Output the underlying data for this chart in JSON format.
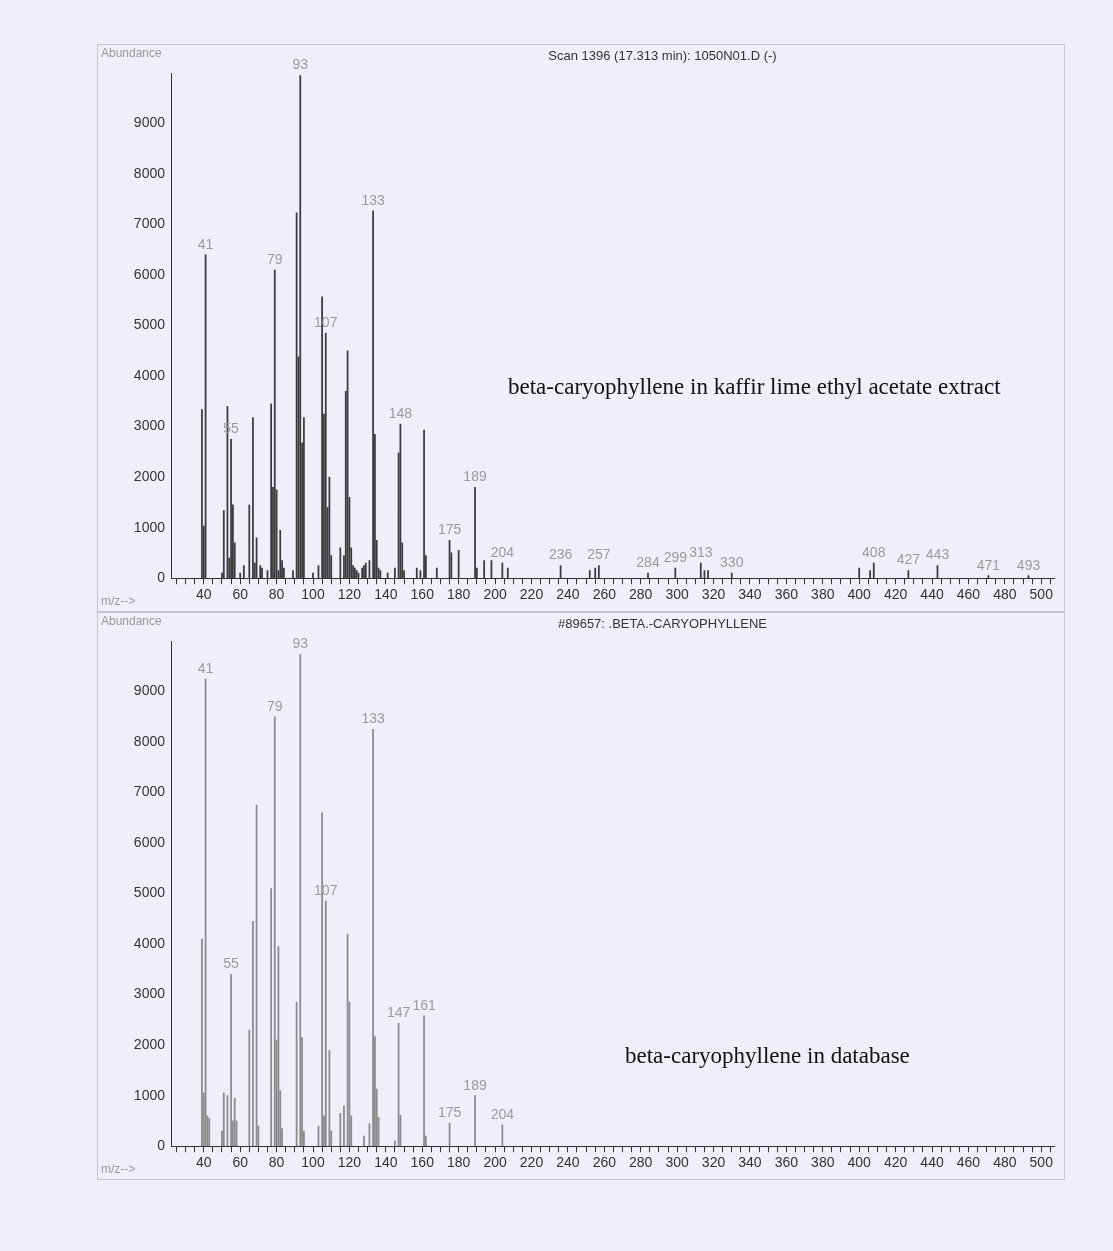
{
  "chart_data": [
    {
      "type": "bar",
      "title": "Scan 1396 (17.313 min): 1050N01.D (-)",
      "xlabel": "m/z-->",
      "ylabel": "Abundance",
      "color": "#3a3a3a",
      "grid": false,
      "x": [
        39,
        40,
        41,
        50,
        51,
        53,
        54,
        55,
        56,
        57,
        60,
        62,
        65,
        67,
        68,
        69,
        71,
        72,
        75,
        77,
        78,
        79,
        80,
        81,
        82,
        83,
        84,
        89,
        91,
        92,
        93,
        94,
        95,
        100,
        103,
        105,
        106,
        107,
        108,
        109,
        110,
        115,
        117,
        118,
        119,
        120,
        121,
        122,
        123,
        124,
        125,
        127,
        128,
        129,
        131,
        133,
        134,
        135,
        136,
        137,
        141,
        145,
        147,
        148,
        149,
        150,
        157,
        159,
        161,
        162,
        168,
        175,
        176,
        180,
        189,
        190,
        194,
        198,
        204,
        207,
        236,
        252,
        255,
        257,
        284,
        299,
        313,
        315,
        317,
        330,
        400,
        406,
        408,
        427,
        443,
        471,
        493
      ],
      "values": [
        3340,
        1030,
        6400,
        100,
        1340,
        3400,
        400,
        2750,
        1450,
        700,
        100,
        250,
        1450,
        3180,
        300,
        800,
        250,
        200,
        150,
        3450,
        1800,
        6100,
        1750,
        150,
        950,
        350,
        200,
        150,
        7230,
        4380,
        9950,
        2680,
        3180,
        100,
        250,
        5570,
        3250,
        4850,
        1400,
        2000,
        450,
        600,
        450,
        3700,
        4500,
        1600,
        600,
        250,
        200,
        150,
        100,
        200,
        250,
        300,
        350,
        7270,
        2850,
        750,
        200,
        150,
        100,
        200,
        2480,
        3050,
        700,
        150,
        200,
        150,
        2930,
        450,
        200,
        750,
        500,
        550,
        1800,
        200,
        350,
        350,
        300,
        200,
        250,
        150,
        200,
        250,
        100,
        200,
        300,
        150,
        150,
        100,
        200,
        150,
        300,
        150,
        250,
        50,
        50
      ],
      "xlim": [
        22,
        507
      ],
      "xticks": [
        {
          "value": 25,
          "label": null
        },
        {
          "value": 30,
          "label": null
        },
        {
          "value": 35,
          "label": null
        },
        40,
        {
          "value": 45,
          "label": null
        },
        {
          "value": 50,
          "label": null
        },
        {
          "value": 55,
          "label": null
        },
        60,
        {
          "value": 65,
          "label": null
        },
        {
          "value": 70,
          "label": null
        },
        {
          "value": 75,
          "label": null
        },
        80,
        {
          "value": 85,
          "label": null
        },
        {
          "value": 90,
          "label": null
        },
        {
          "value": 95,
          "label": null
        },
        100,
        {
          "value": 105,
          "label": null
        },
        {
          "value": 110,
          "label": null
        },
        {
          "value": 115,
          "label": null
        },
        120,
        {
          "value": 125,
          "label": null
        },
        {
          "value": 130,
          "label": null
        },
        {
          "value": 135,
          "label": null
        },
        140,
        {
          "value": 145,
          "label": null
        },
        {
          "value": 150,
          "label": null
        },
        {
          "value": 155,
          "label": null
        },
        160,
        {
          "value": 165,
          "label": null
        },
        {
          "value": 170,
          "label": null
        },
        {
          "value": 175,
          "label": null
        },
        180,
        {
          "value": 185,
          "label": null
        },
        {
          "value": 190,
          "label": null
        },
        {
          "value": 195,
          "label": null
        },
        200,
        {
          "value": 205,
          "label": null
        },
        {
          "value": 210,
          "label": null
        },
        {
          "value": 215,
          "label": null
        },
        220,
        {
          "value": 225,
          "label": null
        },
        {
          "value": 230,
          "label": null
        },
        {
          "value": 235,
          "label": null
        },
        240,
        {
          "value": 245,
          "label": null
        },
        {
          "value": 250,
          "label": null
        },
        {
          "value": 255,
          "label": null
        },
        260,
        {
          "value": 265,
          "label": null
        },
        {
          "value": 270,
          "label": null
        },
        {
          "value": 275,
          "label": null
        },
        280,
        {
          "value": 285,
          "label": null
        },
        {
          "value": 290,
          "label": null
        },
        {
          "value": 295,
          "label": null
        },
        300,
        {
          "value": 305,
          "label": null
        },
        {
          "value": 310,
          "label": null
        },
        {
          "value": 315,
          "label": null
        },
        320,
        {
          "value": 325,
          "label": null
        },
        {
          "value": 330,
          "label": null
        },
        {
          "value": 335,
          "label": null
        },
        340,
        {
          "value": 345,
          "label": null
        },
        {
          "value": 350,
          "label": null
        },
        {
          "value": 355,
          "label": null
        },
        360,
        {
          "value": 365,
          "label": null
        },
        {
          "value": 370,
          "label": null
        },
        {
          "value": 375,
          "label": null
        },
        380,
        {
          "value": 385,
          "label": null
        },
        {
          "value": 390,
          "label": null
        },
        {
          "value": 395,
          "label": null
        },
        400,
        {
          "value": 405,
          "label": null
        },
        {
          "value": 410,
          "label": null
        },
        {
          "value": 415,
          "label": null
        },
        420,
        {
          "value": 425,
          "label": null
        },
        {
          "value": 430,
          "label": null
        },
        {
          "value": 435,
          "label": null
        },
        440,
        {
          "value": 445,
          "label": null
        },
        {
          "value": 450,
          "label": null
        },
        {
          "value": 455,
          "label": null
        },
        460,
        {
          "value": 465,
          "label": null
        },
        {
          "value": 470,
          "label": null
        },
        {
          "value": 475,
          "label": null
        },
        480,
        {
          "value": 485,
          "label": null
        },
        {
          "value": 490,
          "label": null
        },
        {
          "value": 495,
          "label": null
        },
        500,
        {
          "value": 505,
          "label": null
        }
      ],
      "ylim": [
        0,
        10000
      ],
      "yticks": [
        0,
        1000,
        2000,
        3000,
        4000,
        5000,
        6000,
        7000,
        8000,
        9000
      ],
      "annotations": [
        {
          "text": "41",
          "x": 41,
          "y": 6400
        },
        {
          "text": "55",
          "x": 55,
          "y": 2750
        },
        {
          "text": "79",
          "x": 79,
          "y": 6100
        },
        {
          "text": "93",
          "x": 93,
          "y": 9950
        },
        {
          "text": "107",
          "x": 107,
          "y": 4850
        },
        {
          "text": "133",
          "x": 133,
          "y": 7270
        },
        {
          "text": "148",
          "x": 148,
          "y": 3050
        },
        {
          "text": "175",
          "x": 175,
          "y": 750
        },
        {
          "text": "189",
          "x": 189,
          "y": 1800
        },
        {
          "text": "204",
          "x": 204,
          "y": 300
        },
        {
          "text": "236",
          "x": 236,
          "y": 250
        },
        {
          "text": "257",
          "x": 257,
          "y": 250
        },
        {
          "text": "284",
          "x": 284,
          "y": 100
        },
        {
          "text": "299",
          "x": 299,
          "y": 200
        },
        {
          "text": "313",
          "x": 313,
          "y": 300
        },
        {
          "text": "330",
          "x": 330,
          "y": 100
        },
        {
          "text": "408",
          "x": 408,
          "y": 300
        },
        {
          "text": "427",
          "x": 427,
          "y": 150
        },
        {
          "text": "443",
          "x": 443,
          "y": 250
        },
        {
          "text": "471",
          "x": 471,
          "y": 50
        },
        {
          "text": "493",
          "x": 493,
          "y": 50
        },
        "beta-caryophyllene in kaffir lime ethyl acetate extract"
      ]
    },
    {
      "type": "bar",
      "title": "#89657: .BETA.-CARYOPHYLLENE",
      "xlabel": "m/z-->",
      "ylabel": "Abundance",
      "color": "#8a8a8a",
      "grid": false,
      "x": [
        39,
        40,
        41,
        42,
        43,
        50,
        51,
        53,
        55,
        56,
        57,
        58,
        65,
        67,
        69,
        70,
        77,
        79,
        80,
        81,
        82,
        83,
        91,
        93,
        94,
        95,
        103,
        105,
        106,
        107,
        109,
        110,
        115,
        117,
        119,
        120,
        121,
        128,
        131,
        133,
        134,
        135,
        136,
        145,
        147,
        148,
        161,
        162,
        175,
        189,
        204
      ],
      "values": [
        4100,
        1050,
        9250,
        600,
        550,
        300,
        1050,
        1000,
        3400,
        500,
        950,
        500,
        2300,
        4450,
        6750,
        400,
        5100,
        8500,
        2100,
        3950,
        1100,
        350,
        2850,
        9730,
        2150,
        300,
        400,
        6600,
        600,
        4850,
        1900,
        300,
        650,
        800,
        4200,
        2850,
        600,
        200,
        450,
        8250,
        2170,
        1130,
        570,
        100,
        2430,
        610,
        2580,
        200,
        460,
        1000,
        420
      ],
      "xlim": [
        22,
        507
      ],
      "xticks": [
        {
          "value": 25,
          "label": null
        },
        {
          "value": 30,
          "label": null
        },
        {
          "value": 35,
          "label": null
        },
        40,
        {
          "value": 45,
          "label": null
        },
        {
          "value": 50,
          "label": null
        },
        {
          "value": 55,
          "label": null
        },
        60,
        {
          "value": 65,
          "label": null
        },
        {
          "value": 70,
          "label": null
        },
        {
          "value": 75,
          "label": null
        },
        80,
        {
          "value": 85,
          "label": null
        },
        {
          "value": 90,
          "label": null
        },
        {
          "value": 95,
          "label": null
        },
        100,
        {
          "value": 105,
          "label": null
        },
        {
          "value": 110,
          "label": null
        },
        {
          "value": 115,
          "label": null
        },
        120,
        {
          "value": 125,
          "label": null
        },
        {
          "value": 130,
          "label": null
        },
        {
          "value": 135,
          "label": null
        },
        140,
        {
          "value": 145,
          "label": null
        },
        {
          "value": 150,
          "label": null
        },
        {
          "value": 155,
          "label": null
        },
        160,
        {
          "value": 165,
          "label": null
        },
        {
          "value": 170,
          "label": null
        },
        {
          "value": 175,
          "label": null
        },
        180,
        {
          "value": 185,
          "label": null
        },
        {
          "value": 190,
          "label": null
        },
        {
          "value": 195,
          "label": null
        },
        200,
        {
          "value": 205,
          "label": null
        },
        {
          "value": 210,
          "label": null
        },
        {
          "value": 215,
          "label": null
        },
        220,
        {
          "value": 225,
          "label": null
        },
        {
          "value": 230,
          "label": null
        },
        {
          "value": 235,
          "label": null
        },
        240,
        {
          "value": 245,
          "label": null
        },
        {
          "value": 250,
          "label": null
        },
        {
          "value": 255,
          "label": null
        },
        260,
        {
          "value": 265,
          "label": null
        },
        {
          "value": 270,
          "label": null
        },
        {
          "value": 275,
          "label": null
        },
        280,
        {
          "value": 285,
          "label": null
        },
        {
          "value": 290,
          "label": null
        },
        {
          "value": 295,
          "label": null
        },
        300,
        {
          "value": 305,
          "label": null
        },
        {
          "value": 310,
          "label": null
        },
        {
          "value": 315,
          "label": null
        },
        320,
        {
          "value": 325,
          "label": null
        },
        {
          "value": 330,
          "label": null
        },
        {
          "value": 335,
          "label": null
        },
        340,
        {
          "value": 345,
          "label": null
        },
        {
          "value": 350,
          "label": null
        },
        {
          "value": 355,
          "label": null
        },
        360,
        {
          "value": 365,
          "label": null
        },
        {
          "value": 370,
          "label": null
        },
        {
          "value": 375,
          "label": null
        },
        380,
        {
          "value": 385,
          "label": null
        },
        {
          "value": 390,
          "label": null
        },
        {
          "value": 395,
          "label": null
        },
        400,
        {
          "value": 405,
          "label": null
        },
        {
          "value": 410,
          "label": null
        },
        {
          "value": 415,
          "label": null
        },
        420,
        {
          "value": 425,
          "label": null
        },
        {
          "value": 430,
          "label": null
        },
        {
          "value": 435,
          "label": null
        },
        440,
        {
          "value": 445,
          "label": null
        },
        {
          "value": 450,
          "label": null
        },
        {
          "value": 455,
          "label": null
        },
        460,
        {
          "value": 465,
          "label": null
        },
        {
          "value": 470,
          "label": null
        },
        {
          "value": 475,
          "label": null
        },
        480,
        {
          "value": 485,
          "label": null
        },
        {
          "value": 490,
          "label": null
        },
        {
          "value": 495,
          "label": null
        },
        500,
        {
          "value": 505,
          "label": null
        }
      ],
      "ylim": [
        0,
        10000
      ],
      "yticks": [
        0,
        1000,
        2000,
        3000,
        4000,
        5000,
        6000,
        7000,
        8000,
        9000
      ],
      "annotations": [
        {
          "text": "41",
          "x": 41,
          "y": 9250
        },
        {
          "text": "55",
          "x": 55,
          "y": 3400
        },
        {
          "text": "79",
          "x": 79,
          "y": 8500
        },
        {
          "text": "93",
          "x": 93,
          "y": 9730
        },
        {
          "text": "107",
          "x": 107,
          "y": 4850
        },
        {
          "text": "133",
          "x": 133,
          "y": 8250
        },
        {
          "text": "147",
          "x": 147,
          "y": 2430
        },
        {
          "text": "161",
          "x": 161,
          "y": 2580
        },
        {
          "text": "175",
          "x": 175,
          "y": 460
        },
        {
          "text": "189",
          "x": 189,
          "y": 1000
        },
        {
          "text": "204",
          "x": 204,
          "y": 420
        },
        "beta-caryophyllene in database"
      ]
    }
  ]
}
